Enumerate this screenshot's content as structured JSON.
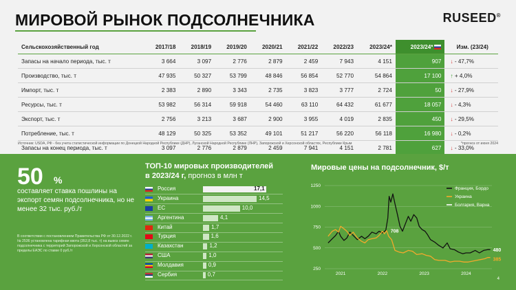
{
  "header": {
    "title": "МИРОВОЙ РЫНОК ПОДСОЛНЕЧНИКА",
    "logo": "RUSEED"
  },
  "table": {
    "columns": [
      "Сельскохозяйственный год",
      "2017/18",
      "2018/19",
      "2019/20",
      "2020/21",
      "2021/22",
      "2022/23",
      "2023/24*",
      "2023/24*",
      "Изм. (23/24)"
    ],
    "rows": [
      {
        "label": "Запасы на начало периода, тыс. т",
        "values": [
          "3 664",
          "3 097",
          "2 776",
          "2 879",
          "2 459",
          "7 943",
          "4 151",
          "907"
        ],
        "dir": "down",
        "change": "- 47,7%"
      },
      {
        "label": "Производство, тыс. т",
        "values": [
          "47 935",
          "50 327",
          "53 799",
          "48 846",
          "56 854",
          "52 770",
          "54 864",
          "17 100"
        ],
        "dir": "up",
        "change": "+ 4,0%"
      },
      {
        "label": "Импорт, тыс. т",
        "values": [
          "2 383",
          "2 890",
          "3 343",
          "2 735",
          "3 823",
          "3 777",
          "2 724",
          "50"
        ],
        "dir": "down",
        "change": "- 27,9%"
      },
      {
        "label": "Ресурсы, тыс. т",
        "values": [
          "53 982",
          "56 314",
          "59 918",
          "54 460",
          "63 110",
          "64 432",
          "61 677",
          "18 057"
        ],
        "dir": "down",
        "change": "- 4,3%"
      },
      {
        "label": "Экспорт, тыс. т",
        "values": [
          "2 756",
          "3 213",
          "3 687",
          "2 900",
          "3 955",
          "4 019",
          "2 835",
          "450"
        ],
        "dir": "down",
        "change": "- 29,5%"
      },
      {
        "label": "Потребление, тыс. т",
        "values": [
          "48 129",
          "50 325",
          "53 352",
          "49 101",
          "51 217",
          "56 220",
          "56 118",
          "16 980"
        ],
        "dir": "down",
        "change": "- 0,2%"
      },
      {
        "label": "Запасы на конец периода, тыс. т",
        "values": [
          "3 097",
          "2 776",
          "2 879",
          "2 459",
          "7 941",
          "4 151",
          "2 781",
          "627"
        ],
        "dir": "down",
        "change": "- 33,0%"
      }
    ],
    "source": "Источник: USDA, РФ - без учета статистической информации по Донецкой Народной Республике (ДНР), Луганской Народной Республике (ЛНР), Запорожской и Херсонской областях, Республике Крым",
    "note": "*прогноз от июня 2024"
  },
  "duty": {
    "number": "50",
    "unit": "%",
    "text": "составляет ставка пошлины на экспорт семян подсолнечника, но не менее 32 тыс. руб./т",
    "small": "В соответствии с постановлением Правительства РФ от 30.12.2022 г. № 2536 установлена тарифная квота (352,8 тыс. т) на вывоз семян подсолнечника с территорий Запорожской и Херсонской областей за пределы ЕАЭС по ставке 0 руб./т"
  },
  "chart_data": [
    {
      "type": "bar",
      "title": "ТОП-10 мировых производителей",
      "subtitle_bold": "в 2023/24 г,",
      "subtitle": "прогноз в млн т",
      "categories": [
        "Россия",
        "Украина",
        "ЕС",
        "Аргентина",
        "Китай",
        "Турция",
        "Казахстан",
        "США",
        "Молдавия",
        "Сербия"
      ],
      "labels": [
        "17,1",
        "14,5",
        "10,0",
        "4,1",
        "1,7",
        "1,6",
        "1,2",
        "1,0",
        "0,9",
        "0,7"
      ],
      "values": [
        17.1,
        14.5,
        10.0,
        4.1,
        1.7,
        1.6,
        1.2,
        1.0,
        0.9,
        0.7
      ]
    },
    {
      "type": "line",
      "title": "Мировые цены на подсолнечник, $/т",
      "ylim": [
        250,
        1250
      ],
      "yticks": [
        250,
        500,
        750,
        1000,
        1250
      ],
      "xticks": [
        "2021",
        "2022",
        "2023",
        "2024"
      ],
      "annotations": [
        "708",
        "480",
        "385"
      ],
      "series": [
        {
          "name": "Франция, Бордо",
          "color": "#111111",
          "values": [
            [
              2020.7,
              560
            ],
            [
              2020.8,
              610
            ],
            [
              2020.88,
              650
            ],
            [
              2020.95,
              700
            ],
            [
              2021.0,
              640
            ],
            [
              2021.08,
              590
            ],
            [
              2021.15,
              620
            ],
            [
              2021.22,
              690
            ],
            [
              2021.3,
              650
            ],
            [
              2021.4,
              600
            ],
            [
              2021.5,
              640
            ],
            [
              2021.58,
              610
            ],
            [
              2021.66,
              640
            ],
            [
              2021.75,
              690
            ],
            [
              2021.85,
              670
            ],
            [
              2021.92,
              700
            ],
            [
              2022.0,
              680
            ],
            [
              2022.08,
              710
            ],
            [
              2022.13,
              860
            ],
            [
              2022.16,
              1120
            ],
            [
              2022.2,
              1050
            ],
            [
              2022.25,
              1150
            ],
            [
              2022.3,
              1030
            ],
            [
              2022.36,
              900
            ],
            [
              2022.42,
              760
            ],
            [
              2022.48,
              700
            ],
            [
              2022.55,
              790
            ],
            [
              2022.62,
              880
            ],
            [
              2022.68,
              820
            ],
            [
              2022.75,
              900
            ],
            [
              2022.82,
              860
            ],
            [
              2022.88,
              760
            ],
            [
              2022.95,
              720
            ],
            [
              2023.02,
              700
            ],
            [
              2023.08,
              660
            ],
            [
              2023.15,
              600
            ],
            [
              2023.25,
              570
            ],
            [
              2023.35,
              530
            ],
            [
              2023.45,
              500
            ],
            [
              2023.55,
              560
            ],
            [
              2023.62,
              490
            ],
            [
              2023.72,
              480
            ],
            [
              2023.82,
              450
            ],
            [
              2023.92,
              430
            ],
            [
              2024.0,
              440
            ],
            [
              2024.1,
              440
            ],
            [
              2024.22,
              470
            ],
            [
              2024.32,
              440
            ],
            [
              2024.42,
              470
            ],
            [
              2024.52,
              480
            ],
            [
              2024.58,
              480
            ]
          ]
        },
        {
          "name": "Украина",
          "color": "#f4a92c",
          "values": [
            [
              2020.7,
              640
            ],
            [
              2020.8,
              700
            ],
            [
              2020.88,
              720
            ],
            [
              2020.95,
              690
            ],
            [
              2021.0,
              760
            ],
            [
              2021.08,
              730
            ],
            [
              2021.15,
              700
            ],
            [
              2021.22,
              650
            ],
            [
              2021.3,
              690
            ],
            [
              2021.4,
              620
            ],
            [
              2021.5,
              580
            ],
            [
              2021.58,
              560
            ],
            [
              2021.66,
              600
            ],
            [
              2021.75,
              610
            ],
            [
              2021.85,
              620
            ],
            [
              2021.92,
              650
            ],
            [
              2022.0,
              700
            ],
            [
              2022.05,
              670
            ],
            [
              2022.1,
              708
            ],
            [
              2022.15,
              640
            ],
            [
              2022.22,
              600
            ],
            [
              2022.3,
              470
            ],
            [
              2022.4,
              450
            ],
            [
              2022.5,
              440
            ],
            [
              2022.62,
              470
            ],
            [
              2022.72,
              460
            ],
            [
              2022.82,
              420
            ],
            [
              2022.95,
              430
            ],
            [
              2023.05,
              410
            ],
            [
              2023.15,
              400
            ],
            [
              2023.25,
              360
            ],
            [
              2023.35,
              350
            ],
            [
              2023.5,
              350
            ],
            [
              2023.62,
              330
            ],
            [
              2023.72,
              340
            ],
            [
              2023.85,
              340
            ],
            [
              2023.95,
              330
            ],
            [
              2024.05,
              330
            ],
            [
              2024.15,
              340
            ],
            [
              2024.25,
              350
            ],
            [
              2024.35,
              360
            ],
            [
              2024.45,
              370
            ],
            [
              2024.52,
              385
            ],
            [
              2024.58,
              385
            ]
          ]
        },
        {
          "name": "Болгария, Варна",
          "color": "#ffffff",
          "values": []
        }
      ]
    }
  ],
  "flag_colors": {
    "Россия": [
      "#ffffff",
      "#1c3fa0",
      "#d52b1e"
    ],
    "Украина": [
      "#1f5fcc",
      "#ffd500"
    ],
    "ЕС": [
      "#1a3fa3"
    ],
    "Аргентина": [
      "#74acdf",
      "#ffffff",
      "#74acdf"
    ],
    "Китай": [
      "#de2910"
    ],
    "Турция": [
      "#e30a17"
    ],
    "Казахстан": [
      "#00afca"
    ],
    "США": [
      "#b22234",
      "#ffffff",
      "#3c3b6e"
    ],
    "Молдавия": [
      "#0046ae",
      "#ffd200",
      "#cc092f"
    ],
    "Сербия": [
      "#c6363c",
      "#0c4076",
      "#ffffff"
    ]
  },
  "page_number": "4"
}
